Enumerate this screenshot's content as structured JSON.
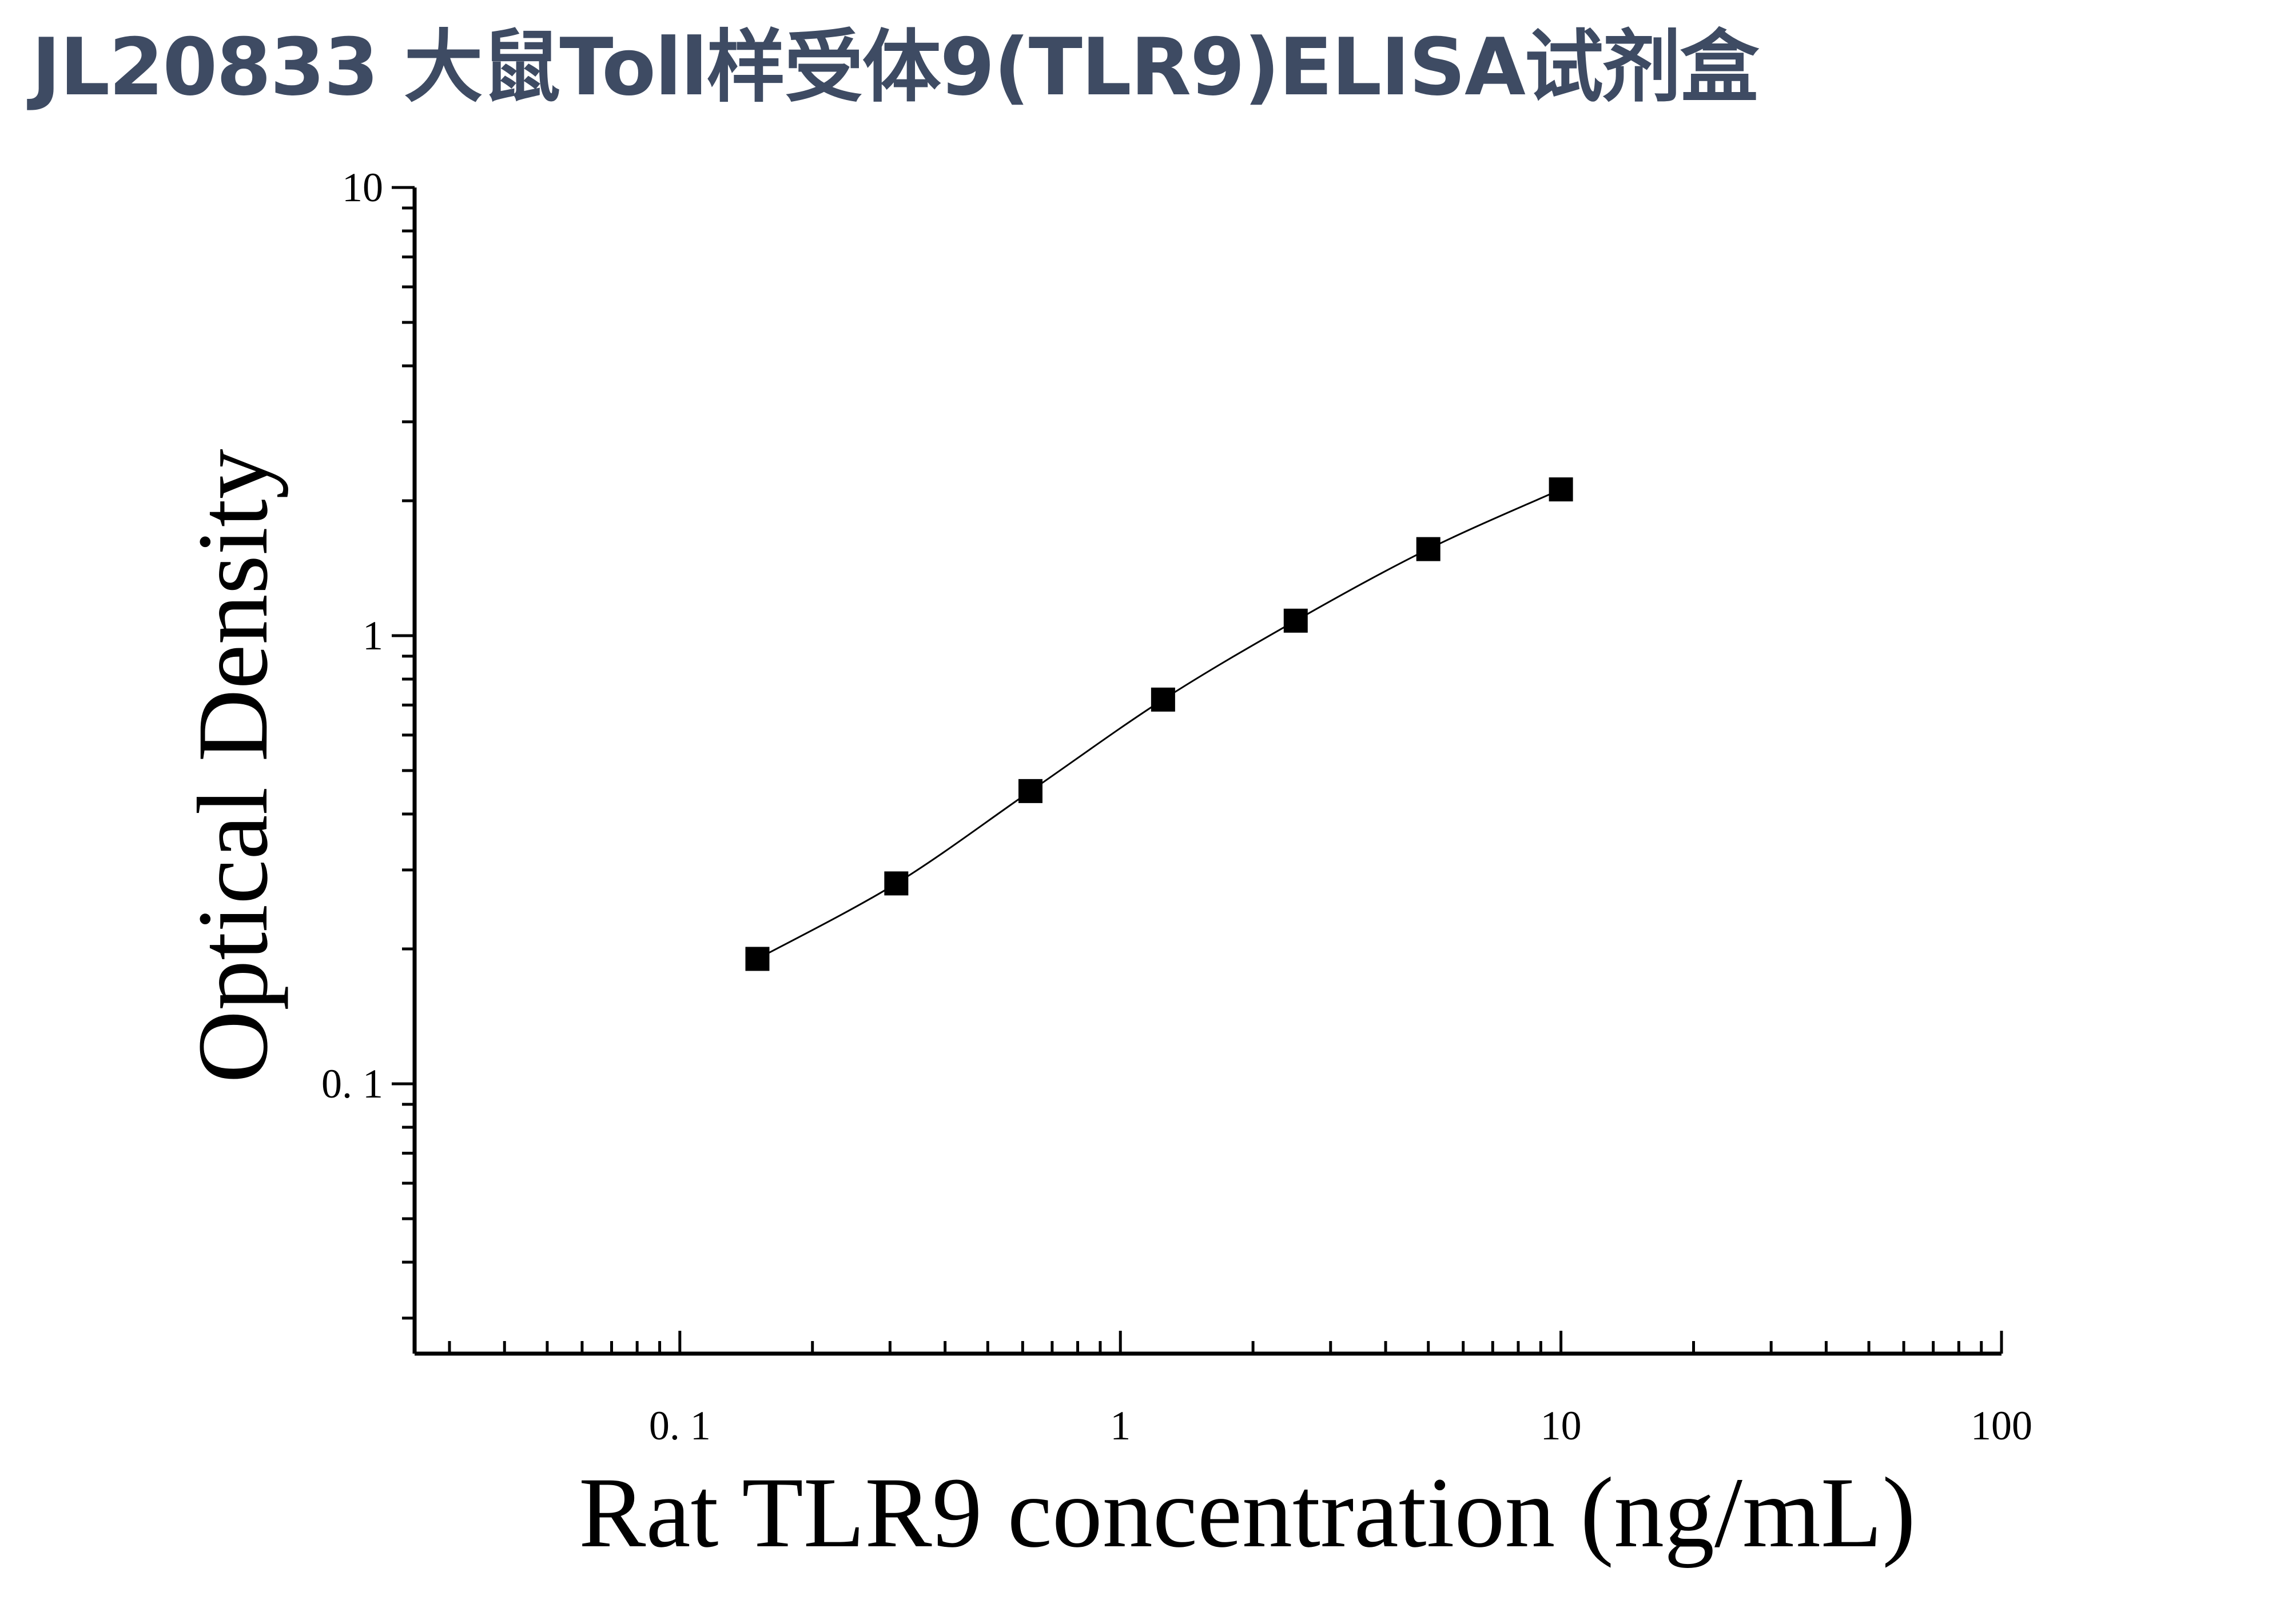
{
  "page": {
    "title": "JL20833 大鼠Toll样受体9(TLR9)ELISA试剂盒"
  },
  "chart_data": {
    "type": "scatter",
    "title": "JL20833 大鼠Toll样受体9(TLR9)ELISA试剂盒",
    "xlabel": "Rat TLR9 concentration (ng/mL)",
    "ylabel": "Optical Density",
    "x_scale": "log",
    "y_scale": "log",
    "xlim": [
      0.025,
      100
    ],
    "ylim": [
      0.025,
      10
    ],
    "x_ticks": [
      0.1,
      1,
      10,
      100
    ],
    "x_tick_labels": [
      "0. 1",
      "1",
      "10",
      "100"
    ],
    "y_ticks": [
      0.1,
      1,
      10
    ],
    "y_tick_labels": [
      "0. 1",
      "1",
      "10"
    ],
    "grid": false,
    "legend": "none",
    "marker": "square",
    "marker_color": "#000000",
    "fit_line": true,
    "series": [
      {
        "x": [
          0.15,
          0.31,
          0.625,
          1.25,
          2.5,
          5,
          10
        ],
        "y": [
          0.19,
          0.28,
          0.45,
          0.72,
          1.08,
          1.56,
          2.12
        ]
      }
    ]
  }
}
